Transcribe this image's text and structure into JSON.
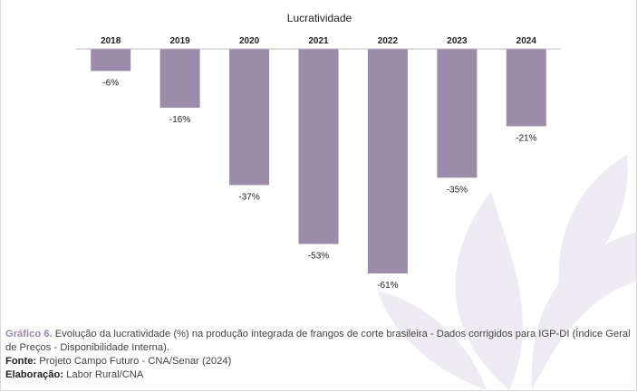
{
  "colors": {
    "bar": "#9c8ba9",
    "accent": "#9a88a8",
    "watermark": "#ece8ef"
  },
  "chart_data": {
    "type": "bar",
    "title": "Lucratividade",
    "categories": [
      "2018",
      "2019",
      "2020",
      "2021",
      "2022",
      "2023",
      "2024"
    ],
    "values": [
      -6,
      -16,
      -37,
      -53,
      -61,
      -35,
      -21
    ],
    "value_labels": [
      "-6%",
      "-16%",
      "-37%",
      "-53%",
      "-61%",
      "-35%",
      "-21%"
    ],
    "xlabel": "",
    "ylabel": "",
    "ylim": [
      -61,
      0
    ],
    "grid": false,
    "x_axis_position": "top"
  },
  "caption": {
    "figure_label": "Gráfico 6.",
    "figure_text": " Evolução da lucratividade (%) na produção integrada de frangos de corte brasileira - Dados corrigidos para IGP-DI (Índice Geral de Preços - Disponibilidade Interna).",
    "source_label": "Fonte:",
    "source_text": " Projeto Campo Futuro - CNA/Senar (2024)",
    "author_label": "Elaboração:",
    "author_text": " Labor Rural/CNA"
  }
}
